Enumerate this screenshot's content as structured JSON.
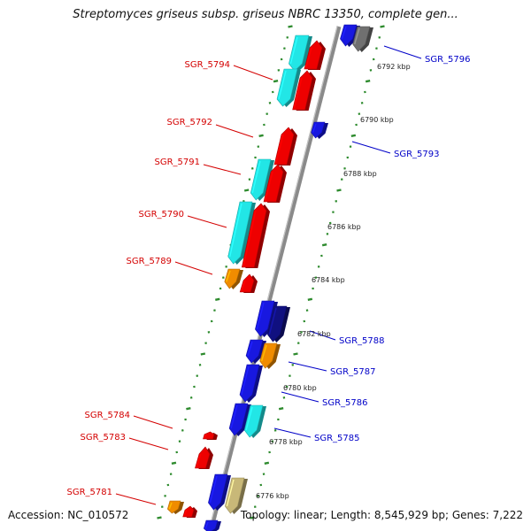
{
  "title": "Streptomyces griseus subsp. griseus NBRC 13350, complete gen...",
  "footer": {
    "accession": "Accession: NC_010572",
    "topology": "Topology: linear; Length: 8,545,929 bp; Genes: 7,222"
  },
  "colors": {
    "background": "#ffffff",
    "backbone": "#8a8a8a",
    "tick": "#2e8b2e",
    "left_label": "#d40000",
    "right_label": "#0000c8",
    "gene_red": "#ee0000",
    "gene_cyan": "#22e6e6",
    "gene_orange": "#f08c00",
    "gene_blue": "#1818e0",
    "gene_navy": "#101080",
    "gene_gray": "#707070",
    "gene_khaki": "#c8b878"
  },
  "scale_labels": [
    "6792 kbp",
    "6790 kbp",
    "6788 kbp",
    "6786 kbp",
    "6784 kbp",
    "6782 kbp",
    "6780 kbp",
    "6778 kbp",
    "6776 kbp"
  ],
  "gene_labels_left": [
    "SGR_5794",
    "SGR_5792",
    "SGR_5791",
    "SGR_5790",
    "SGR_5789",
    "SGR_5784",
    "SGR_5783",
    "SGR_5781"
  ],
  "gene_labels_right": [
    "SGR_5796",
    "SGR_5793",
    "SGR_5788",
    "SGR_5787",
    "SGR_5786",
    "SGR_5785"
  ]
}
